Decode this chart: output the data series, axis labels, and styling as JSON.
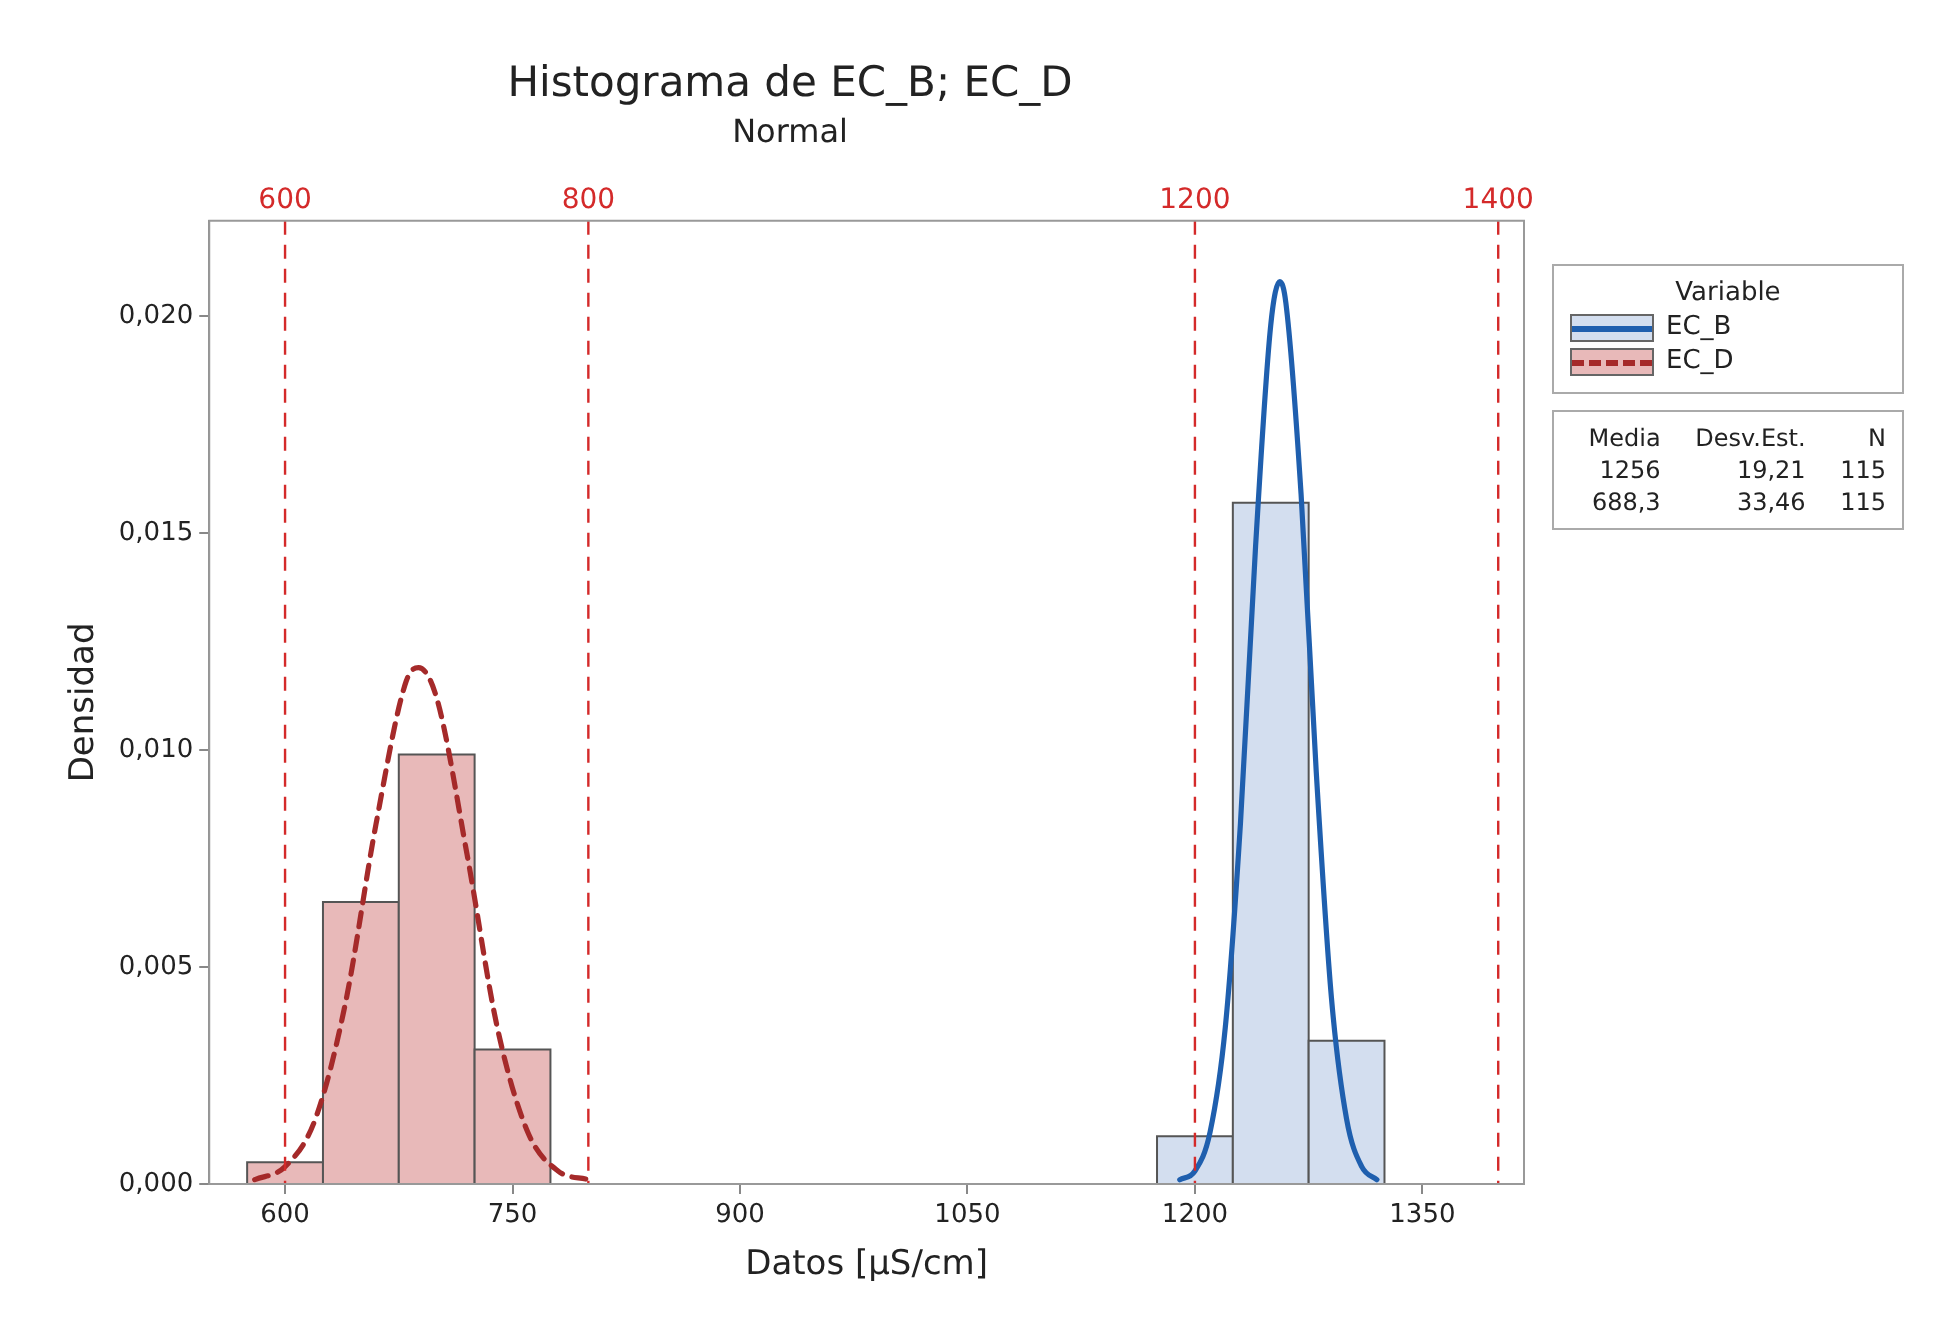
{
  "chart_data": {
    "type": "histogram",
    "title": "Histograma de EC_B; EC_D",
    "subtitle": "Normal",
    "xlabel": "Datos [µS/cm]",
    "ylabel": "Densidad",
    "legend_title": "Variable",
    "legend": "right",
    "xlim": [
      550,
      1417
    ],
    "xticks": [
      600,
      750,
      900,
      1050,
      1200,
      1350
    ],
    "ylim": [
      0,
      0.0222
    ],
    "yticks": [
      {
        "value": 0,
        "label": "0,000"
      },
      {
        "value": 0.005,
        "label": "0,005"
      },
      {
        "value": 0.01,
        "label": "0,010"
      },
      {
        "value": 0.015,
        "label": "0,015"
      },
      {
        "value": 0.02,
        "label": "0,020"
      }
    ],
    "series": [
      {
        "name": "EC_B",
        "color": "#d3deef",
        "bins": [
          1175,
          1225,
          1275,
          1325
        ],
        "values": [
          0.0011,
          0.0157,
          0.0033
        ]
      },
      {
        "name": "EC_D",
        "color": "#e8b9b9",
        "bins": [
          575,
          625,
          675,
          725,
          775
        ],
        "values": [
          0.0005,
          0.0065,
          0.0099,
          0.0031
        ]
      },
      {
        "type": "line",
        "color": "#1f5fae",
        "line_style": "solid",
        "x": [
          1190,
          1200,
          1210,
          1220,
          1230,
          1240,
          1250,
          1256,
          1260,
          1270,
          1280,
          1290,
          1300,
          1310,
          1320
        ],
        "values": [
          0.0001,
          0.0003,
          0.0012,
          0.0036,
          0.0083,
          0.0147,
          0.0198,
          0.0208,
          0.0203,
          0.0159,
          0.0095,
          0.0043,
          0.0015,
          0.0004,
          0.0001
        ]
      },
      {
        "type": "line",
        "color": "#a52a2a",
        "line_style": "dashed",
        "x": [
          580,
          600,
          620,
          640,
          660,
          680,
          688,
          700,
          720,
          740,
          760,
          780,
          800
        ],
        "values": [
          0.0001,
          0.0004,
          0.0015,
          0.0042,
          0.0083,
          0.0116,
          0.0119,
          0.0112,
          0.0076,
          0.0036,
          0.0012,
          0.0003,
          0.0001
        ]
      }
    ],
    "ref_lines": [
      {
        "axis": "x",
        "value": 600,
        "label": "600",
        "color": "#d42a2a",
        "line_style": "dashed"
      },
      {
        "axis": "x",
        "value": 800,
        "label": "800",
        "color": "#d42a2a",
        "line_style": "dashed"
      },
      {
        "axis": "x",
        "value": 1200,
        "label": "1200",
        "color": "#d42a2a",
        "line_style": "dashed"
      },
      {
        "axis": "x",
        "value": 1400,
        "label": "1400",
        "color": "#d42a2a",
        "line_style": "dashed"
      }
    ],
    "annotations": [
      "Media",
      "Desv.Est.",
      "N",
      "1256",
      "19,21",
      "115",
      "688,3",
      "33,46",
      "115"
    ]
  }
}
